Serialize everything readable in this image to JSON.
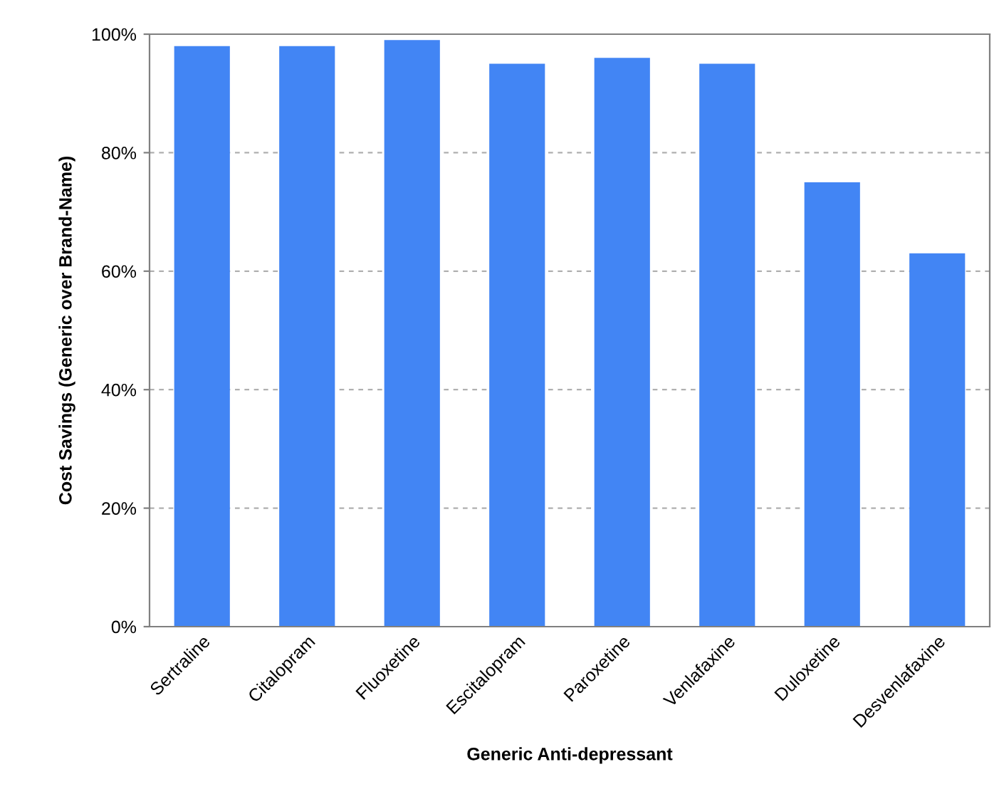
{
  "chart_data": {
    "type": "bar",
    "xlabel": "Generic Anti-depressant",
    "ylabel": "Cost Savings (Generic over Brand-Name)",
    "categories": [
      "Sertraline",
      "Citalopram",
      "Fluoxetine",
      "Escitalopram",
      "Paroxetine",
      "Venlafaxine",
      "Duloxetine",
      "Desvenlafaxine"
    ],
    "values": [
      98,
      98,
      99,
      95,
      96,
      95,
      75,
      63
    ],
    "color": "#4285f4",
    "ylim": [
      0,
      100
    ],
    "yticks": [
      {
        "value": 0,
        "label": "0%"
      },
      {
        "value": 20,
        "label": "20%"
      },
      {
        "value": 40,
        "label": "40%"
      },
      {
        "value": 60,
        "label": "60%"
      },
      {
        "value": 80,
        "label": "80%"
      },
      {
        "value": 100,
        "label": "100%"
      }
    ],
    "grid": "y"
  }
}
